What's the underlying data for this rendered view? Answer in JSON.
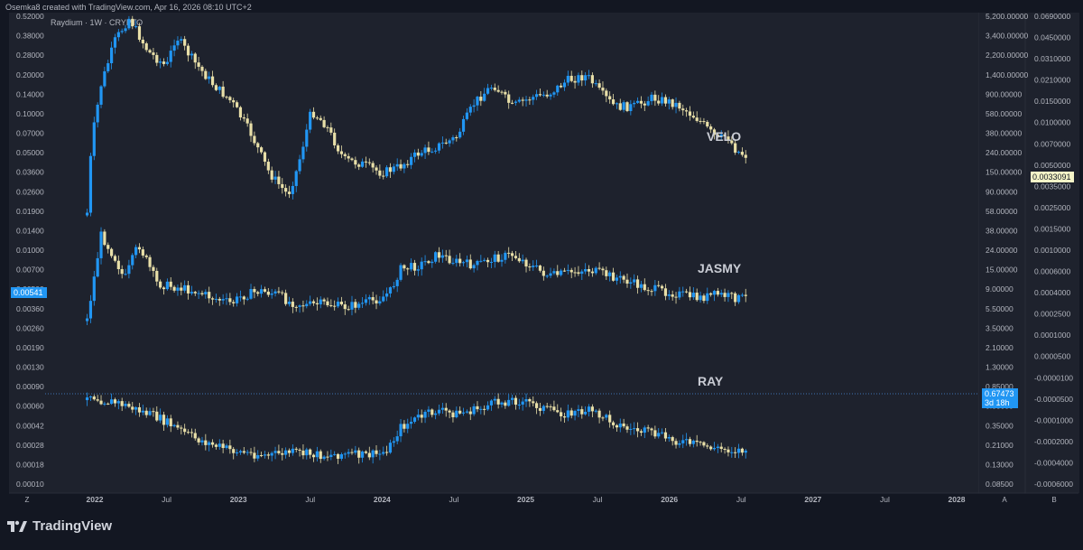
{
  "header": {
    "caption": "Osemka8 created with TradingView.com, Apr 16, 2026 08:10 UTC+2",
    "symbol": "Raydium · 1W · CRYPTO"
  },
  "footer": {
    "brand": "TradingView"
  },
  "colors": {
    "background": "#131722",
    "pane": "#1e222d",
    "up": "#2196f3",
    "down": "#e8dfa8",
    "text": "#b2b5be",
    "label": "#c9ccd4",
    "ray_tag": "#2962ff",
    "velo_tag": "#f5f5c8"
  },
  "chart_data": {
    "type": "candlestick",
    "interval": "1W",
    "x_ticks": [
      "2022",
      "Jul",
      "2023",
      "Jul",
      "2024",
      "Jul",
      "2025",
      "Jul",
      "2026",
      "Jul",
      "2027",
      "Jul",
      "2028"
    ],
    "left_axis_corner": "Z",
    "right_axis_corner_a": "A",
    "right_axis_corner_b": "B",
    "left_axis_ticks": [
      "0.52000",
      "0.38000",
      "0.28000",
      "0.20000",
      "0.14000",
      "0.10000",
      "0.07000",
      "0.05000",
      "0.03600",
      "0.02600",
      "0.01900",
      "0.01400",
      "0.01000",
      "0.00700",
      "0.00500",
      "0.00360",
      "0.00260",
      "0.00190",
      "0.00130",
      "0.00090",
      "0.00060",
      "0.00042",
      "0.00028",
      "0.00018",
      "0.00010"
    ],
    "mid_axis_ticks": [
      "5,200.00000",
      "3,400.00000",
      "2,200.00000",
      "1,400.00000",
      "900.00000",
      "580.00000",
      "380.00000",
      "240.00000",
      "150.00000",
      "90.00000",
      "58.00000",
      "38.00000",
      "24.00000",
      "15.00000",
      "9.00000",
      "5.50000",
      "3.50000",
      "2.10000",
      "1.30000",
      "0.85000",
      "0.55000",
      "0.35000",
      "0.21000",
      "0.13000",
      "0.08500"
    ],
    "right_axis_ticks": [
      "0.0690000",
      "0.0450000",
      "0.0310000",
      "0.0210000",
      "0.0150000",
      "0.0100000",
      "0.0070000",
      "0.0050000",
      "0.0035000",
      "0.0025000",
      "0.0015000",
      "0.0010000",
      "0.0006000",
      "0.0004000",
      "0.0002500",
      "0.0001000",
      "0.0000500",
      "-0.0000100",
      "-0.0000500",
      "-0.0001000",
      "-0.0002000",
      "-0.0004000",
      "-0.0006000"
    ],
    "last_price_labels": {
      "jasmy": "0.00541",
      "ray_price": "0.67473",
      "ray_countdown": "3d 18h",
      "velo": "0.0033091"
    },
    "series": [
      {
        "name": "VELO",
        "points": [
          [
            0.045,
            0.12
          ],
          [
            0.05,
            0.45
          ],
          [
            0.06,
            0.7
          ],
          [
            0.075,
            0.9
          ],
          [
            0.09,
            1.0
          ],
          [
            0.11,
            0.85
          ],
          [
            0.13,
            0.78
          ],
          [
            0.14,
            0.92
          ],
          [
            0.16,
            0.8
          ],
          [
            0.18,
            0.7
          ],
          [
            0.2,
            0.62
          ],
          [
            0.22,
            0.48
          ],
          [
            0.24,
            0.3
          ],
          [
            0.26,
            0.2
          ],
          [
            0.27,
            0.32
          ],
          [
            0.285,
            0.58
          ],
          [
            0.3,
            0.52
          ],
          [
            0.32,
            0.36
          ],
          [
            0.34,
            0.34
          ],
          [
            0.36,
            0.3
          ],
          [
            0.38,
            0.33
          ],
          [
            0.4,
            0.39
          ],
          [
            0.42,
            0.42
          ],
          [
            0.44,
            0.46
          ],
          [
            0.46,
            0.62
          ],
          [
            0.48,
            0.7
          ],
          [
            0.5,
            0.6
          ],
          [
            0.52,
            0.64
          ],
          [
            0.54,
            0.66
          ],
          [
            0.56,
            0.72
          ],
          [
            0.58,
            0.74
          ],
          [
            0.595,
            0.66
          ],
          [
            0.61,
            0.6
          ],
          [
            0.63,
            0.6
          ],
          [
            0.65,
            0.64
          ],
          [
            0.67,
            0.62
          ],
          [
            0.68,
            0.6
          ],
          [
            0.7,
            0.54
          ],
          [
            0.72,
            0.45
          ],
          [
            0.73,
            0.47
          ],
          [
            0.74,
            0.4
          ],
          [
            0.75,
            0.38
          ]
        ],
        "label": "VELO"
      },
      {
        "name": "JASMY",
        "points": [
          [
            0.045,
            0.08
          ],
          [
            0.06,
            0.55
          ],
          [
            0.075,
            0.42
          ],
          [
            0.085,
            0.3
          ],
          [
            0.1,
            0.5
          ],
          [
            0.12,
            0.28
          ],
          [
            0.14,
            0.26
          ],
          [
            0.16,
            0.24
          ],
          [
            0.18,
            0.2
          ],
          [
            0.2,
            0.17
          ],
          [
            0.21,
            0.21
          ],
          [
            0.23,
            0.24
          ],
          [
            0.25,
            0.22
          ],
          [
            0.26,
            0.18
          ],
          [
            0.28,
            0.16
          ],
          [
            0.3,
            0.17
          ],
          [
            0.32,
            0.15
          ],
          [
            0.34,
            0.17
          ],
          [
            0.36,
            0.2
          ],
          [
            0.37,
            0.24
          ],
          [
            0.38,
            0.36
          ],
          [
            0.4,
            0.38
          ],
          [
            0.42,
            0.44
          ],
          [
            0.44,
            0.4
          ],
          [
            0.46,
            0.38
          ],
          [
            0.48,
            0.42
          ],
          [
            0.5,
            0.44
          ],
          [
            0.52,
            0.38
          ],
          [
            0.54,
            0.32
          ],
          [
            0.56,
            0.34
          ],
          [
            0.58,
            0.36
          ],
          [
            0.6,
            0.33
          ],
          [
            0.62,
            0.3
          ],
          [
            0.64,
            0.26
          ],
          [
            0.66,
            0.24
          ],
          [
            0.68,
            0.22
          ],
          [
            0.7,
            0.2
          ],
          [
            0.72,
            0.22
          ],
          [
            0.74,
            0.2
          ],
          [
            0.75,
            0.2
          ]
        ],
        "label": "JASMY"
      },
      {
        "name": "RAY",
        "points": [
          [
            0.045,
            0.4
          ],
          [
            0.06,
            0.36
          ],
          [
            0.08,
            0.34
          ],
          [
            0.1,
            0.3
          ],
          [
            0.12,
            0.26
          ],
          [
            0.14,
            0.2
          ],
          [
            0.16,
            0.14
          ],
          [
            0.18,
            0.1
          ],
          [
            0.2,
            0.07
          ],
          [
            0.22,
            0.05
          ],
          [
            0.24,
            0.04
          ],
          [
            0.26,
            0.06
          ],
          [
            0.28,
            0.05
          ],
          [
            0.3,
            0.04
          ],
          [
            0.32,
            0.05
          ],
          [
            0.34,
            0.04
          ],
          [
            0.36,
            0.05
          ],
          [
            0.37,
            0.1
          ],
          [
            0.38,
            0.2
          ],
          [
            0.4,
            0.26
          ],
          [
            0.42,
            0.3
          ],
          [
            0.44,
            0.28
          ],
          [
            0.46,
            0.3
          ],
          [
            0.48,
            0.34
          ],
          [
            0.5,
            0.36
          ],
          [
            0.52,
            0.34
          ],
          [
            0.54,
            0.3
          ],
          [
            0.56,
            0.28
          ],
          [
            0.58,
            0.3
          ],
          [
            0.6,
            0.26
          ],
          [
            0.62,
            0.2
          ],
          [
            0.64,
            0.18
          ],
          [
            0.66,
            0.15
          ],
          [
            0.68,
            0.12
          ],
          [
            0.7,
            0.1
          ],
          [
            0.72,
            0.08
          ],
          [
            0.74,
            0.07
          ],
          [
            0.75,
            0.07
          ]
        ],
        "label": "RAY"
      }
    ]
  }
}
